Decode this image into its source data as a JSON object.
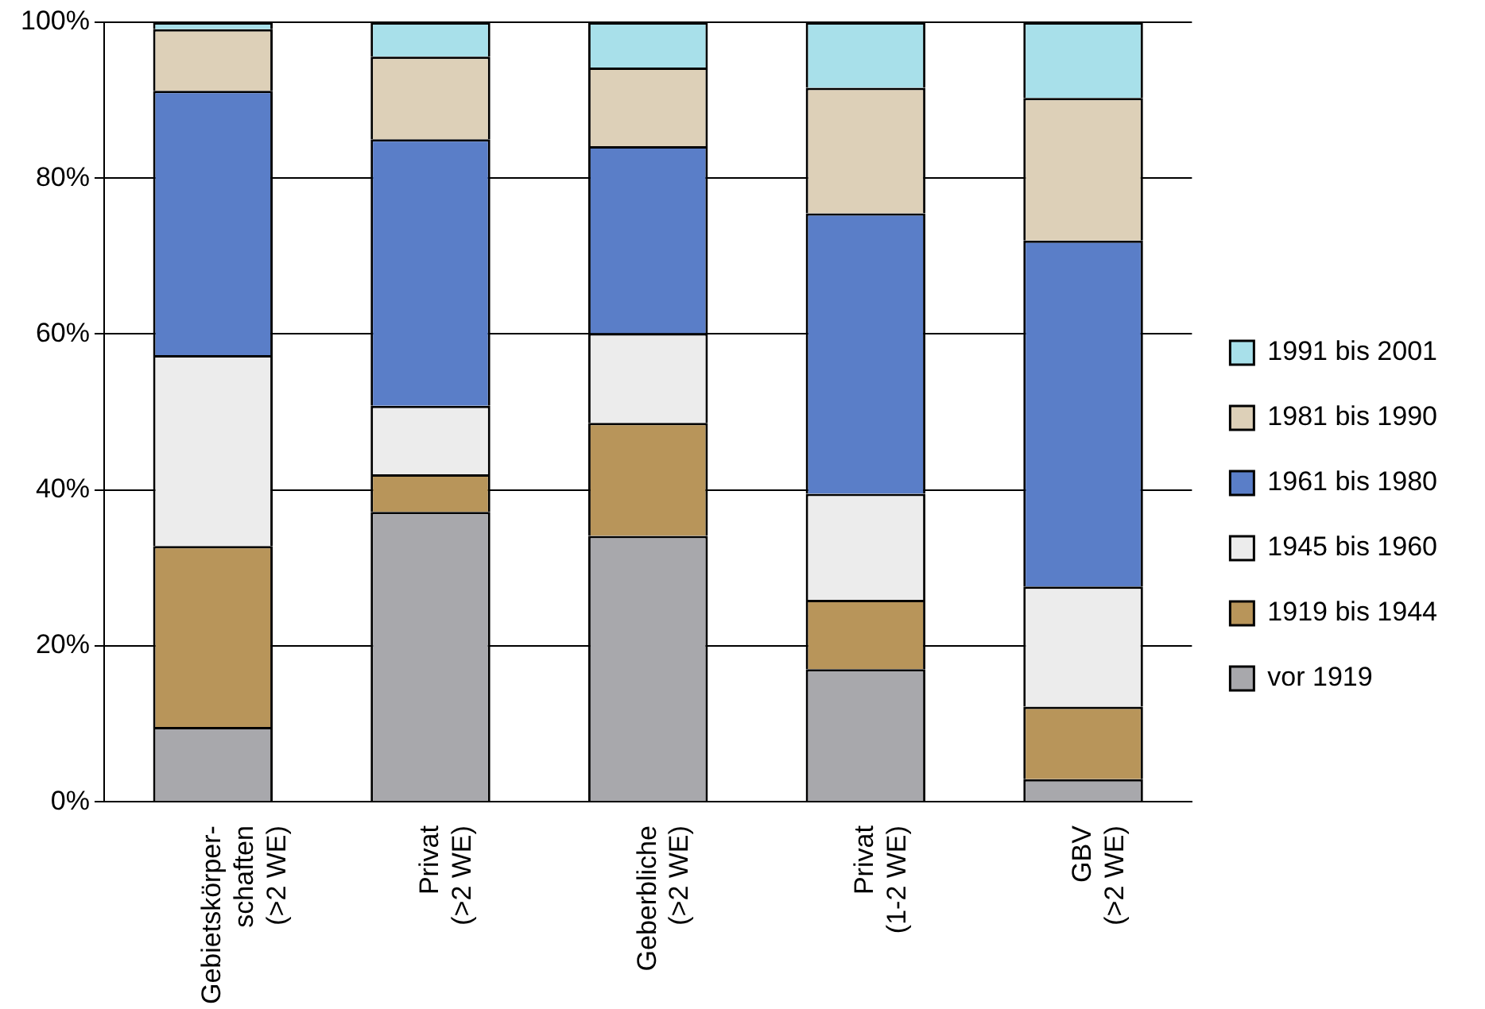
{
  "chart_data": {
    "type": "bar",
    "stacked": true,
    "categories": [
      "Gebietskörper-\nschaften\n(>2 WE)",
      "Privat\n(>2 WE)",
      "Geberbliche\n(>2 WE)",
      "Privat\n(1-2 WE)",
      "GBV\n(>2 WE)"
    ],
    "series": [
      {
        "name": "vor 1919",
        "color": "#a8a8ac",
        "values": [
          9.6,
          37.2,
          34.1,
          17.0,
          2.9
        ]
      },
      {
        "name": "1919 bis 1944",
        "color": "#b8955a",
        "values": [
          23.2,
          4.8,
          14.5,
          8.9,
          9.3
        ]
      },
      {
        "name": "1945 bis 1960",
        "color": "#ececec",
        "values": [
          24.5,
          8.8,
          11.5,
          13.6,
          15.4
        ]
      },
      {
        "name": "1961 bis 1980",
        "color": "#5a7ec8",
        "values": [
          33.9,
          34.2,
          24.0,
          36.0,
          44.4
        ]
      },
      {
        "name": "1981 bis 1990",
        "color": "#ddd0b8",
        "values": [
          7.9,
          10.6,
          10.1,
          16.1,
          18.3
        ]
      },
      {
        "name": "1991 bis 2001",
        "color": "#a8e0ea",
        "values": [
          0.9,
          4.4,
          5.8,
          8.4,
          9.7
        ]
      }
    ],
    "ylim": [
      0,
      100
    ],
    "yticks": [
      {
        "value": 0,
        "label": "0%"
      },
      {
        "value": 20,
        "label": "20%"
      },
      {
        "value": 40,
        "label": "40%"
      },
      {
        "value": 60,
        "label": "60%"
      },
      {
        "value": 80,
        "label": "80%"
      },
      {
        "value": 100,
        "label": "100%"
      }
    ],
    "grid": "y",
    "legend": "right"
  }
}
